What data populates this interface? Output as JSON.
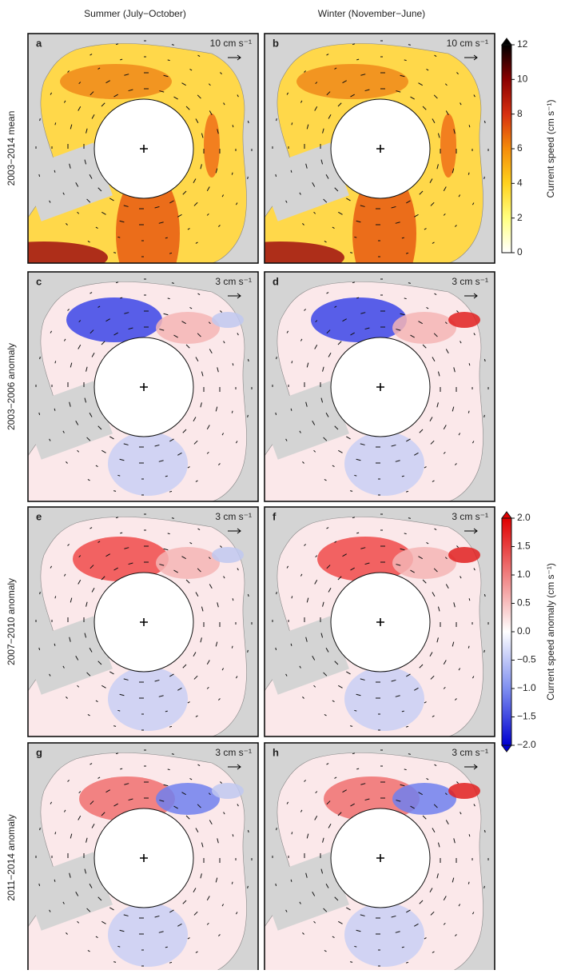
{
  "figure": {
    "columns": [
      "Summer (July−October)",
      "Winter (November−June)"
    ],
    "rows": [
      {
        "label": "2003−2014 mean",
        "kind": "mean",
        "panels": [
          {
            "letter": "a",
            "scale_label": "10 cm s⁻¹"
          },
          {
            "letter": "b",
            "scale_label": "10 cm s⁻¹"
          }
        ]
      },
      {
        "label": "2003−2006 anomaly",
        "kind": "anomaly",
        "panels": [
          {
            "letter": "c",
            "scale_label": "3 cm s⁻¹"
          },
          {
            "letter": "d",
            "scale_label": "3 cm s⁻¹"
          }
        ]
      },
      {
        "label": "2007−2010 anomaly",
        "kind": "anomaly",
        "panels": [
          {
            "letter": "e",
            "scale_label": "3 cm s⁻¹"
          },
          {
            "letter": "f",
            "scale_label": "3 cm s⁻¹"
          }
        ]
      },
      {
        "label": "2011−2014 anomaly",
        "kind": "anomaly",
        "panels": [
          {
            "letter": "g",
            "scale_label": "3 cm s⁻¹"
          },
          {
            "letter": "h",
            "scale_label": "3 cm s⁻¹"
          }
        ]
      }
    ],
    "colorbars": [
      {
        "label": "Current speed (cm s⁻¹)",
        "lim": [
          0,
          12
        ],
        "ticks": [
          0,
          2,
          4,
          6,
          8,
          10,
          12
        ],
        "colors": [
          "#ffffff",
          "#ffff80",
          "#ffd21e",
          "#f58c0a",
          "#d73010",
          "#8b0000",
          "#000000"
        ]
      },
      {
        "label": "Current speed anomaly (cm s⁻¹)",
        "lim": [
          -2,
          2
        ],
        "ticks": [
          {
            "value": -2,
            "label": "−2.0"
          },
          {
            "value": -1.5,
            "label": "−1.5"
          },
          {
            "value": -1,
            "label": "−1.0"
          },
          {
            "value": -0.5,
            "label": "−0.5"
          },
          {
            "value": 0,
            "label": "0.0"
          },
          {
            "value": 0.5,
            "label": "0.5"
          },
          {
            "value": 1,
            "label": "1.0"
          },
          {
            "value": 1.5,
            "label": "1.5"
          },
          {
            "value": 2,
            "label": "2.0"
          }
        ],
        "colors": [
          "#0000d0",
          "#7f8ff0",
          "#ffffff",
          "#f08080",
          "#e00000"
        ]
      }
    ]
  }
}
